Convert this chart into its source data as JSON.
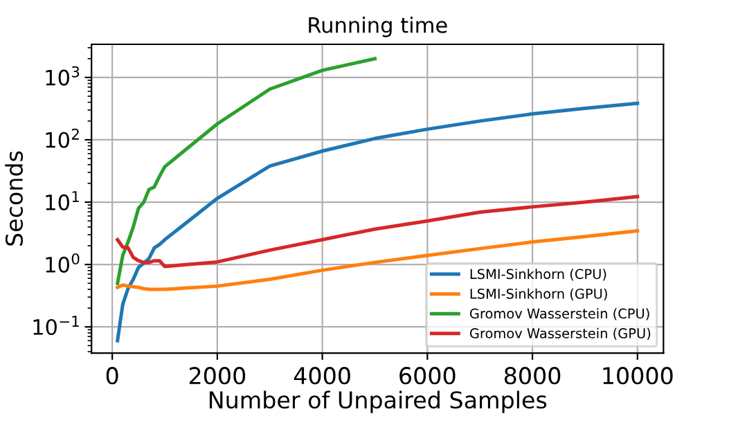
{
  "chart_data": {
    "type": "line",
    "title": "Running time",
    "xlabel": "Number of Unpaired Samples",
    "ylabel": "Seconds",
    "log": "y",
    "grid": true,
    "legend": "bottom right",
    "xlim": [
      -395,
      10495
    ],
    "xticks": [
      0,
      2000,
      4000,
      6000,
      8000,
      10000
    ],
    "ylim": [
      0.038,
      3400
    ],
    "yticks": [
      {
        "value": 0.1,
        "label": "10$^{−1}$"
      },
      {
        "value": 1,
        "label": "10$^{0}$"
      },
      {
        "value": 10,
        "label": "10$^{1}$"
      },
      {
        "value": 100,
        "label": "10$^{2}$"
      },
      {
        "value": 1000,
        "label": "10$^{3}$"
      }
    ],
    "series": [
      {
        "name": "LSMI-Sinkhorn (CPU)",
        "color": "#1f77b4",
        "x": [
          100,
          200,
          300,
          400,
          500,
          600,
          700,
          800,
          900,
          1000,
          2000,
          3000,
          4000,
          5000,
          6000,
          7000,
          8000,
          9000,
          10000
        ],
        "values": [
          0.06,
          0.23,
          0.41,
          0.58,
          0.9,
          1.05,
          1.25,
          1.85,
          2.1,
          2.5,
          11.5,
          38,
          66,
          105,
          148,
          200,
          260,
          320,
          385
        ]
      },
      {
        "name": "LSMI-Sinkhorn (GPU)",
        "color": "#ff7f0e",
        "x": [
          100,
          200,
          300,
          400,
          500,
          600,
          700,
          800,
          900,
          1000,
          2000,
          3000,
          4000,
          5000,
          6000,
          7000,
          8000,
          9000,
          10000
        ],
        "values": [
          0.43,
          0.47,
          0.45,
          0.44,
          0.43,
          0.41,
          0.4,
          0.4,
          0.4,
          0.4,
          0.45,
          0.58,
          0.81,
          1.08,
          1.4,
          1.8,
          2.3,
          2.8,
          3.46
        ]
      },
      {
        "name": "Gromov Wasserstein (CPU)",
        "color": "#2ca02c",
        "x": [
          100,
          200,
          300,
          400,
          500,
          600,
          700,
          800,
          900,
          1000,
          2000,
          3000,
          4000,
          5000
        ],
        "values": [
          0.5,
          1.4,
          2.3,
          4.0,
          8,
          10,
          16,
          17.5,
          26,
          37,
          180,
          650,
          1300,
          2000
        ]
      },
      {
        "name": "Gromov Wasserstein (GPU)",
        "color": "#d62728",
        "x": [
          100,
          200,
          300,
          400,
          500,
          600,
          700,
          800,
          900,
          1000,
          2000,
          3000,
          4000,
          5000,
          6000,
          7000,
          8000,
          9000,
          10000
        ],
        "values": [
          2.5,
          1.9,
          1.85,
          1.3,
          1.15,
          1.08,
          1.08,
          1.15,
          1.15,
          0.93,
          1.1,
          1.7,
          2.5,
          3.7,
          5.0,
          6.9,
          8.4,
          10,
          12.3
        ]
      }
    ]
  }
}
